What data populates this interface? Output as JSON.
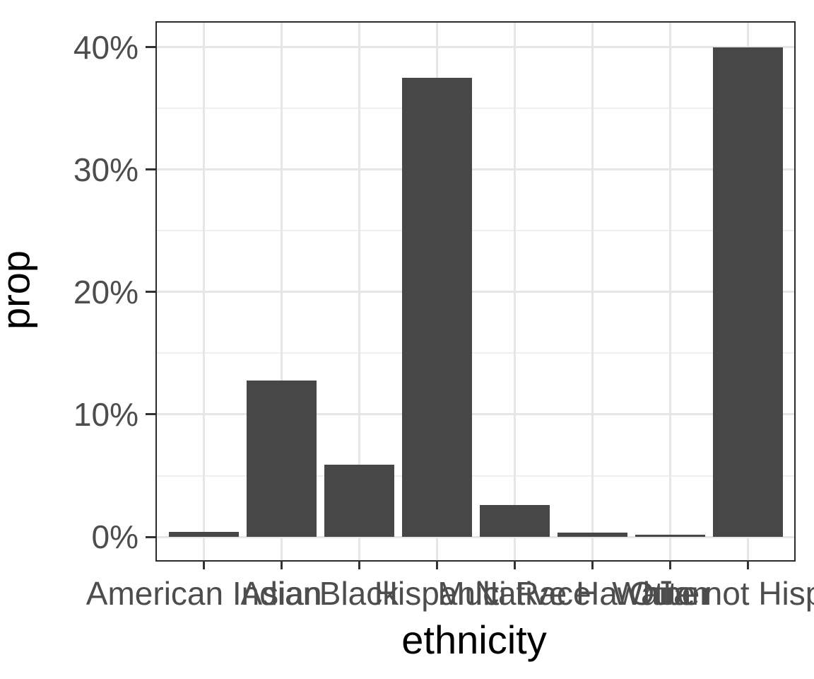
{
  "chart_data": {
    "type": "bar",
    "title": "",
    "xlabel": "ethnicity",
    "ylabel": "prop",
    "categories": [
      "American Indian",
      "Asian",
      "Black",
      "Hispanic",
      "Multi Race",
      "Native Hawaiian",
      "Other",
      "White not Hispanic"
    ],
    "values_pct": [
      0.4,
      12.8,
      5.9,
      37.5,
      2.6,
      0.35,
      0.2,
      40.0
    ],
    "y_tick_labels": [
      "0%",
      "10%",
      "20%",
      "30%",
      "40%"
    ],
    "y_tick_values": [
      0,
      10,
      20,
      30,
      40
    ],
    "y_minor_values": [
      5,
      15,
      25,
      35
    ],
    "ylim_pct": [
      -1.9,
      42.0
    ],
    "grid": "major and minor, light grey on white, black panel border",
    "legend_position": "none",
    "bar_relative_width": 0.9,
    "category_edge_expand": 0.6
  },
  "colors": {
    "bar_fill": "#474747",
    "panel_border": "#2b2b2b",
    "grid_major": "#e6e6e6",
    "grid_minor": "#efefef",
    "tick_mark": "#333333",
    "tick_label": "#4d4d4d",
    "axis_title": "#000000",
    "background": "#ffffff"
  }
}
